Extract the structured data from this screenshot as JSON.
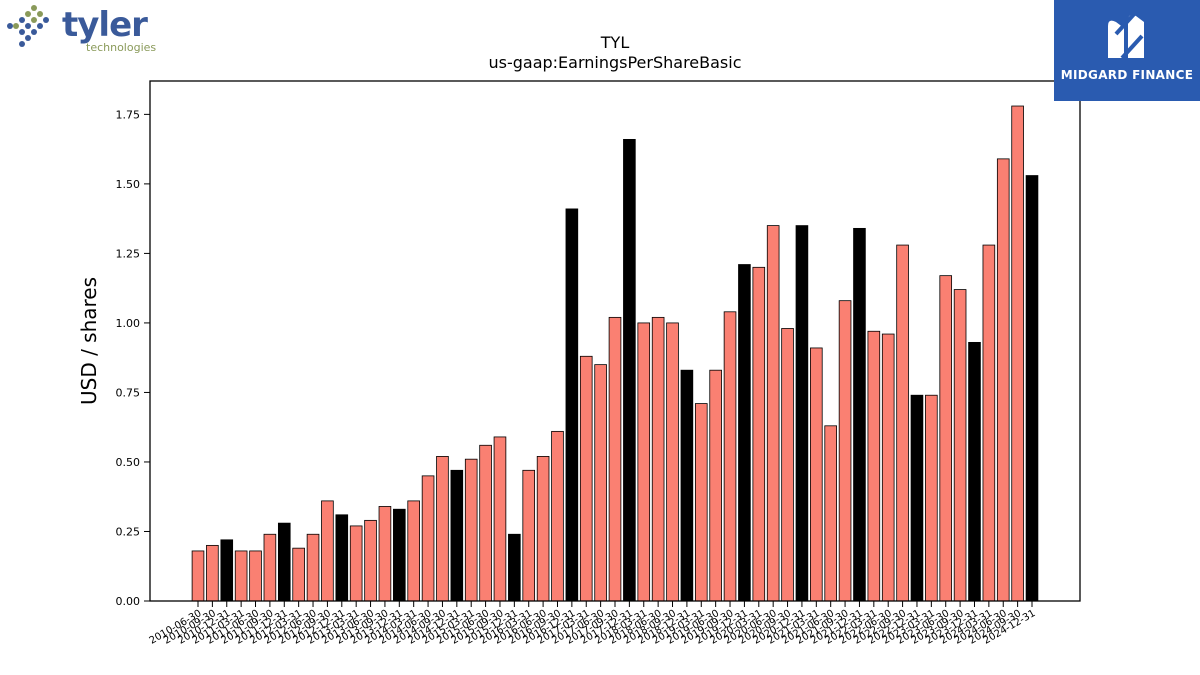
{
  "logos": {
    "left": {
      "word": "tyler",
      "subtitle": "technologies"
    },
    "right": {
      "name": "MIDGARD FINANCE",
      "brand_color": "#2a5bb0"
    }
  },
  "chart_data": {
    "type": "bar",
    "title": "TYL",
    "subtitle": "us-gaap:EarningsPerShareBasic",
    "ylabel": "USD / shares",
    "xlabel": "",
    "ylim": [
      0,
      1.87
    ],
    "yticks": [
      0.0,
      0.25,
      0.5,
      0.75,
      1.0,
      1.25,
      1.5,
      1.75
    ],
    "ytick_labels": [
      "0.00",
      "0.25",
      "0.50",
      "0.75",
      "1.00",
      "1.25",
      "1.50",
      "1.75"
    ],
    "grid": false,
    "colors": {
      "quarterly": "#fa8072",
      "annual": "#000000",
      "edge": "#000000"
    },
    "categories": [
      "2010-06-30",
      "2010-09-30",
      "2010-12-31",
      "2011-03-31",
      "2011-06-30",
      "2011-09-30",
      "2011-12-31",
      "2012-03-31",
      "2012-06-30",
      "2012-09-30",
      "2012-12-31",
      "2013-03-31",
      "2013-06-30",
      "2013-09-30",
      "2013-12-31",
      "2014-03-31",
      "2014-06-30",
      "2014-09-30",
      "2014-12-31",
      "2015-03-31",
      "2015-06-30",
      "2015-09-30",
      "2015-12-31",
      "2016-03-31",
      "2016-06-30",
      "2016-09-30",
      "2016-12-31",
      "2017-03-31",
      "2017-06-30",
      "2017-09-30",
      "2017-12-31",
      "2018-03-31",
      "2018-06-30",
      "2018-09-30",
      "2018-12-31",
      "2019-03-31",
      "2019-06-30",
      "2019-09-30",
      "2019-12-31",
      "2020-03-31",
      "2020-06-30",
      "2020-09-30",
      "2020-12-31",
      "2021-03-31",
      "2021-06-30",
      "2021-09-30",
      "2021-12-31",
      "2022-03-31",
      "2022-06-30",
      "2022-09-30",
      "2022-12-31",
      "2023-03-31",
      "2023-06-30",
      "2023-09-30",
      "2023-12-31",
      "2024-03-31",
      "2024-06-30",
      "2024-09-30",
      "2024-12-31"
    ],
    "visible_tick_labels": [
      "2010-06-30",
      "2010-09-30",
      "2010-12-31",
      "2011-03-31",
      "2011-06-30",
      "2011-09-30",
      "2011-12-31",
      "2012-03-31",
      "2012-06-30",
      "2012-09-30",
      "2012-12-31",
      "2013-03-31",
      "2013-06-30",
      "2013-09-30",
      "2013-12-31",
      "2014-03-31",
      "2014-06-30",
      "2014-09-30",
      "2014-12-31",
      "2015-03-31",
      "2015-06-30",
      "2015-09-30",
      "2015-12-31",
      "2016-03-31",
      "2016-06-30",
      "2016-09-30",
      "2016-12-31",
      "2017-03-31",
      "2017-06-30",
      "2017-09-30",
      "2017-12-31",
      "2018-03-31",
      "2018-06-30",
      "2018-09-30",
      "2018-12-31",
      "2019-03-31",
      "2019-06-30",
      "2019-09-30",
      "2019-12-31",
      "2020-03-31",
      "2020-06-30",
      "2020-09-30",
      "2020-12-31",
      "2021-03-31",
      "2021-06-30",
      "2021-09-30",
      "2021-12-31",
      "2022-03-31",
      "2022-06-30",
      "2022-09-30",
      "2022-12-31",
      "2023-03-31",
      "2023-06-30",
      "2023-09-30",
      "2023-12-31",
      "2024-03-31",
      "2024-06-30",
      "2024-09-30",
      "2024-12-31"
    ],
    "values": [
      0.18,
      0.2,
      0.22,
      0.18,
      0.18,
      0.24,
      0.28,
      0.19,
      0.24,
      0.36,
      0.31,
      0.27,
      0.29,
      0.34,
      0.33,
      0.36,
      0.45,
      0.52,
      0.47,
      0.51,
      0.56,
      0.59,
      0.24,
      0.47,
      0.52,
      0.61,
      1.41,
      0.88,
      0.85,
      1.02,
      1.66,
      1.0,
      1.02,
      1.0,
      0.83,
      0.71,
      0.83,
      1.04,
      1.21,
      1.2,
      1.35,
      0.98,
      1.35,
      0.91,
      0.63,
      1.08,
      1.34,
      0.97,
      0.96,
      1.28,
      0.74,
      0.74,
      1.17,
      1.12,
      0.93,
      1.28,
      1.59,
      1.78,
      1.53
    ],
    "annual_flags": [
      false,
      false,
      true,
      false,
      false,
      false,
      true,
      false,
      false,
      false,
      true,
      false,
      false,
      false,
      true,
      false,
      false,
      false,
      true,
      false,
      false,
      false,
      true,
      false,
      false,
      false,
      true,
      false,
      false,
      false,
      true,
      false,
      false,
      false,
      true,
      false,
      false,
      false,
      true,
      false,
      false,
      false,
      true,
      false,
      false,
      false,
      true,
      false,
      false,
      false,
      true,
      false,
      false,
      false,
      true,
      false,
      false,
      false,
      true
    ]
  }
}
